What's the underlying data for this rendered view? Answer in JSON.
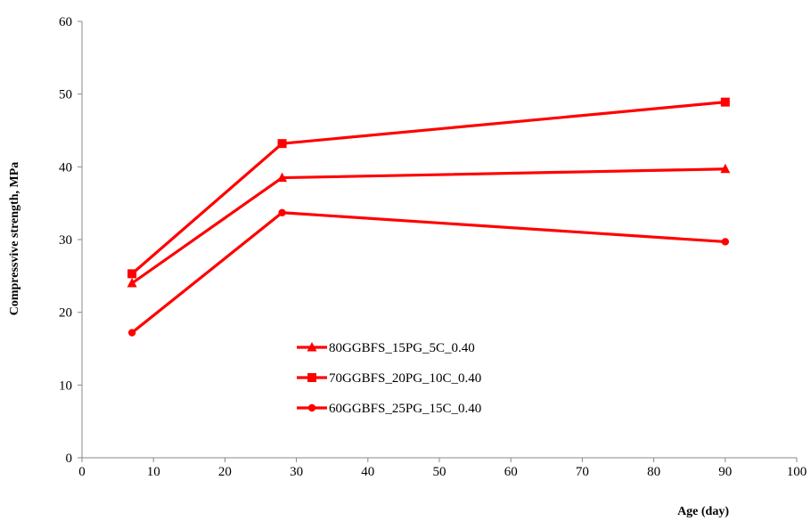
{
  "chart_data": {
    "type": "line",
    "xlabel": "Age (day)",
    "ylabel": "Compressvive strength, MPa",
    "xlim": [
      0,
      100
    ],
    "ylim": [
      0,
      60
    ],
    "xticks": [
      "0",
      "10",
      "20",
      "30",
      "40",
      "50",
      "60",
      "70",
      "80",
      "90",
      "100"
    ],
    "yticks": [
      "0",
      "10",
      "20",
      "30",
      "40",
      "50",
      "60"
    ],
    "grid": false,
    "legend_position": "center",
    "color": "#ff0000",
    "series": [
      {
        "name": "80GGBFS_15PG_5C_0.40",
        "marker": "triangle",
        "x": [
          7,
          28,
          90
        ],
        "y": [
          24.0,
          38.5,
          39.7
        ]
      },
      {
        "name": "70GGBFS_20PG_10C_0.40",
        "marker": "square",
        "x": [
          7,
          28,
          90
        ],
        "y": [
          25.3,
          43.2,
          48.9
        ]
      },
      {
        "name": "60GGBFS_25PG_15C_0.40",
        "marker": "circle",
        "x": [
          7,
          28,
          90
        ],
        "y": [
          17.2,
          33.7,
          29.7
        ]
      }
    ]
  }
}
